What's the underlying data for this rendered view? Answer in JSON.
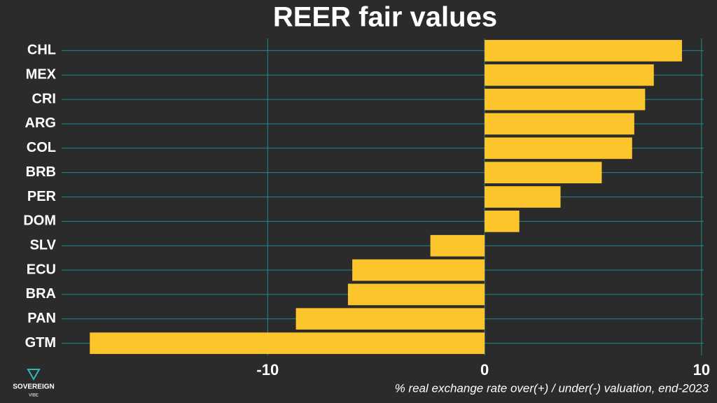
{
  "chart_data": {
    "type": "barh",
    "title": "REER fair values",
    "x_label": "% real exchange rate over(+) / under(-) valuation, end-2023",
    "categories": [
      "CHL",
      "MEX",
      "CRI",
      "ARG",
      "COL",
      "BRB",
      "PER",
      "DOM",
      "SLV",
      "ECU",
      "BRA",
      "PAN",
      "GTM"
    ],
    "values": [
      9.1,
      7.8,
      7.4,
      6.9,
      6.8,
      5.4,
      3.5,
      1.6,
      -2.5,
      -6.1,
      -6.3,
      -8.7,
      -18.2
    ],
    "color": "#fdc52c",
    "xlim": [
      -19.5,
      10.1
    ],
    "xticks": [
      -10,
      0,
      10
    ],
    "grid": true,
    "grid_color": "#1f8a8f"
  },
  "logo": {
    "name": "SOVEREIGN",
    "tagline": "VIBE"
  }
}
